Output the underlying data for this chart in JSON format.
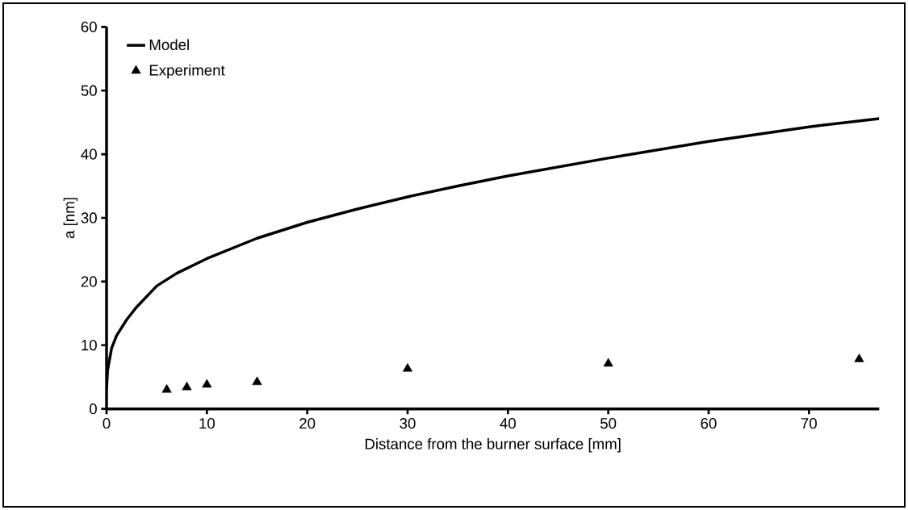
{
  "chart_data": {
    "type": "line",
    "xlabel": "Distance from the burner surface [mm]",
    "ylabel": "a [nm]",
    "xlim": [
      0,
      77
    ],
    "ylim": [
      0,
      60
    ],
    "xticks": [
      0,
      10,
      20,
      30,
      40,
      50,
      60,
      70
    ],
    "yticks": [
      0,
      10,
      20,
      30,
      40,
      50,
      60
    ],
    "grid": false,
    "legend": "top left",
    "series": [
      {
        "name": "Model",
        "color": "#000000",
        "marker": "none",
        "line_style": "solid",
        "x": [
          0,
          0.1,
          0.5,
          1,
          2,
          3,
          5,
          7,
          10,
          15,
          20,
          25,
          30,
          35,
          40,
          50,
          60,
          70,
          77
        ],
        "values": [
          3,
          6,
          9.5,
          11.5,
          14,
          16,
          19.3,
          21.3,
          23.6,
          26.8,
          29.3,
          31.4,
          33.3,
          35,
          36.6,
          39.4,
          42,
          44.3,
          45.6
        ]
      },
      {
        "name": "Experiment",
        "type": "scatter",
        "color": "#000000",
        "marker": "triangle",
        "x": [
          6,
          8,
          10,
          15,
          30,
          50,
          75
        ],
        "values": [
          3.0,
          3.4,
          3.8,
          4.2,
          6.3,
          7.1,
          7.8
        ]
      }
    ]
  }
}
